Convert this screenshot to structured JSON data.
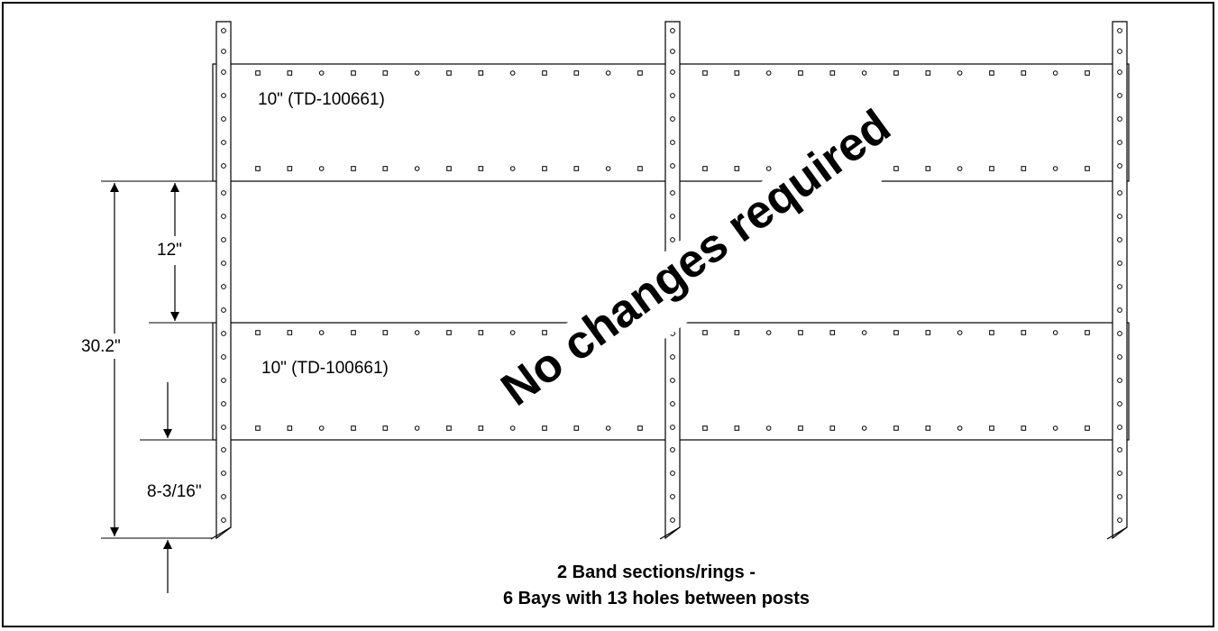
{
  "diagram": {
    "band_labels": [
      "10\" (TD-100661)",
      "10\" (TD-100661)"
    ],
    "dimensions": {
      "spacing_between_bands": "12\"",
      "overall_height": "30.2\"",
      "bottom_offset": "8-3/16\""
    },
    "stamp": "No changes required",
    "caption": {
      "line1": "2 Band sections/rings -",
      "line2": "6 Bays with 13 holes between posts"
    },
    "counts": {
      "band_sections": 2,
      "bays": 6,
      "holes_between_posts": 13,
      "posts": 3
    }
  }
}
